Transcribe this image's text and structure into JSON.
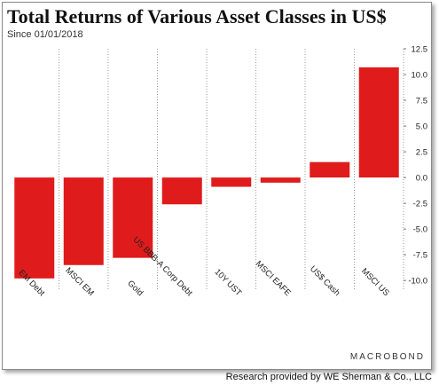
{
  "header": {
    "title": "Total Returns of Various Asset Classes in US$",
    "subtitle": "Since 01/01/2018"
  },
  "footer": {
    "brand": "MACROBOND",
    "credit": "Research provided by WE Sherman & Co., LLC"
  },
  "chart_data": {
    "type": "bar",
    "categories": [
      "EM Debt",
      "MSCI EM",
      "Gold",
      "US BBB-A Corp Debt",
      "10Y UST",
      "MSCI EAFE",
      "US$ Cash",
      "MSCI US"
    ],
    "values": [
      -9.8,
      -8.5,
      -7.8,
      -2.6,
      -0.9,
      -0.5,
      1.5,
      10.7
    ],
    "ylim": [
      -10.5,
      12.5
    ],
    "yticks": [
      "12.5",
      "10.0",
      "7.5",
      "5.0",
      "2.5",
      "0.0",
      "-2.5",
      "-5.0",
      "-7.5",
      "-10.0"
    ],
    "ytick_values": [
      12.5,
      10,
      7.5,
      5,
      2.5,
      0,
      -2.5,
      -5,
      -7.5,
      -10
    ],
    "y_axis_side": "right",
    "grid": "vertical dotted",
    "bar_color": "#e01b1b"
  }
}
